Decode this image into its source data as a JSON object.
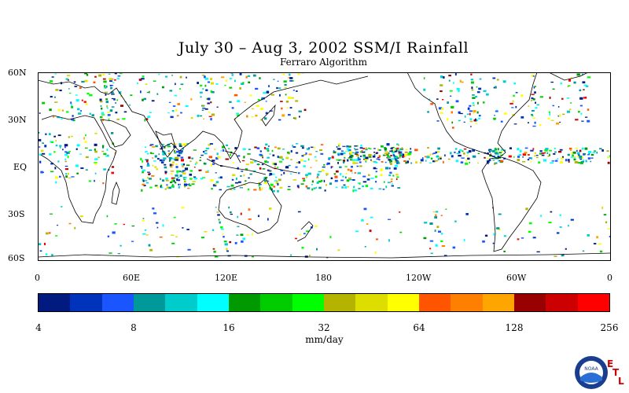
{
  "title": "July 30 – Aug 3, 2002 SSM/I Rainfall",
  "subtitle": "Ferraro Algorithm",
  "lat_labels": [
    "60N",
    "30N",
    "EQ",
    "30S",
    "60S"
  ],
  "lon_labels": [
    "0",
    "60E",
    "120E",
    "180",
    "120W",
    "60W",
    "0"
  ],
  "colorbar": {
    "colors": [
      "#001a80",
      "#0033bb",
      "#1a55ff",
      "#009999",
      "#00cccc",
      "#00ffff",
      "#009900",
      "#00cc00",
      "#00ff00",
      "#b3b300",
      "#dddd00",
      "#ffff00",
      "#ff5500",
      "#ff7f00",
      "#ffa500",
      "#990000",
      "#cc0000",
      "#ff0000"
    ],
    "tick_labels": [
      "4",
      "8",
      "16",
      "32",
      "64",
      "128",
      "256"
    ],
    "units": "mm/day"
  },
  "logo": {
    "text": "NOAA",
    "letters": [
      "E",
      "T",
      "L"
    ]
  }
}
